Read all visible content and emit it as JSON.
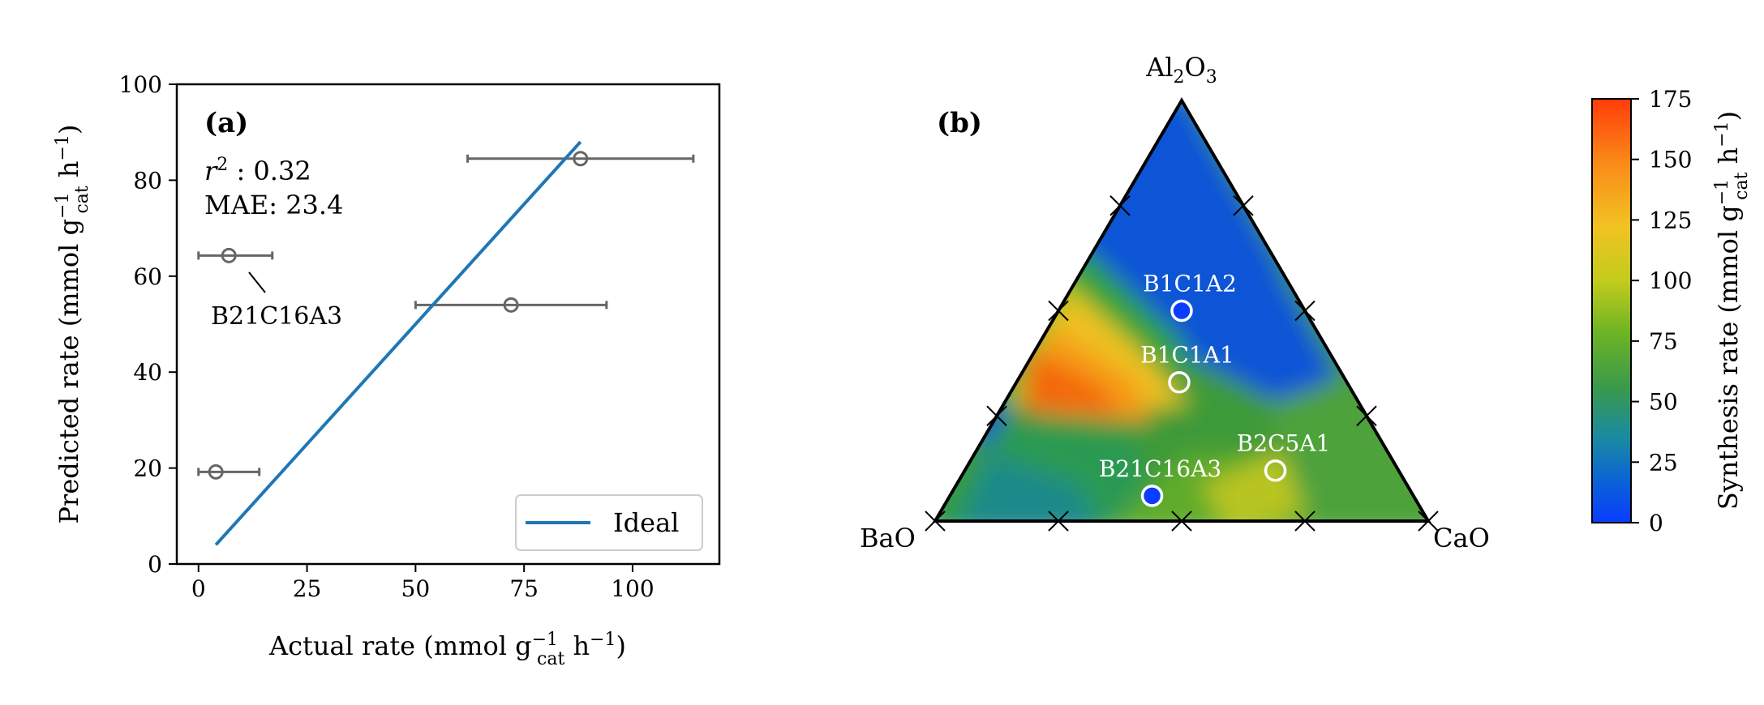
{
  "chart_data": [
    {
      "type": "scatter",
      "panel_label": "(a)",
      "xlabel": "Actual rate (mmol g",
      "ylabel": "Predicted rate (mmol g",
      "xlim": [
        -5,
        120
      ],
      "ylim": [
        0,
        100
      ],
      "xticks": [
        0,
        25,
        50,
        75,
        100
      ],
      "yticks": [
        0,
        20,
        40,
        60,
        80,
        100
      ],
      "stats": {
        "r2_value": "0.32",
        "mae_text": "MAE: 23.4"
      },
      "points": [
        {
          "x": 88,
          "y": 84.5,
          "xerr": [
            62,
            114
          ]
        },
        {
          "x": 72,
          "y": 54,
          "xerr": [
            50,
            94
          ]
        },
        {
          "x": 7,
          "y": 64.3,
          "xerr": [
            0,
            17
          ],
          "label": "B21C16A3"
        },
        {
          "x": 4,
          "y": 19.2,
          "xerr": [
            0,
            14
          ]
        }
      ],
      "ideal_line": {
        "x": [
          4,
          88
        ],
        "y": [
          4,
          88
        ]
      },
      "legend": {
        "entries": [
          "Ideal"
        ],
        "placement": "lower-right"
      },
      "series_color": "#1f77b4",
      "marker_color": "#666666"
    },
    {
      "type": "heatmap",
      "subtype": "ternary",
      "panel_label": "(b)",
      "vertices": {
        "top": "Al2O3",
        "left": "BaO",
        "right": "CaO"
      },
      "colorbar": {
        "label": "Synthesis rate (mmol g",
        "range": [
          0,
          175
        ],
        "ticks": [
          0,
          25,
          50,
          75,
          100,
          125,
          150,
          175
        ]
      },
      "samples": [
        {
          "name": "B1C1A2",
          "BaO": 0.25,
          "CaO": 0.25,
          "Al2O3": 0.5,
          "rate": 5
        },
        {
          "name": "B1C1A1",
          "BaO": 0.34,
          "CaO": 0.33,
          "Al2O3": 0.33,
          "rate": 60
        },
        {
          "name": "B2C5A1",
          "BaO": 0.25,
          "CaO": 0.63,
          "Al2O3": 0.12,
          "rate": 80
        },
        {
          "name": "B21C16A3",
          "BaO": 0.53,
          "CaO": 0.41,
          "Al2O3": 0.06,
          "rate": 5
        }
      ]
    }
  ]
}
